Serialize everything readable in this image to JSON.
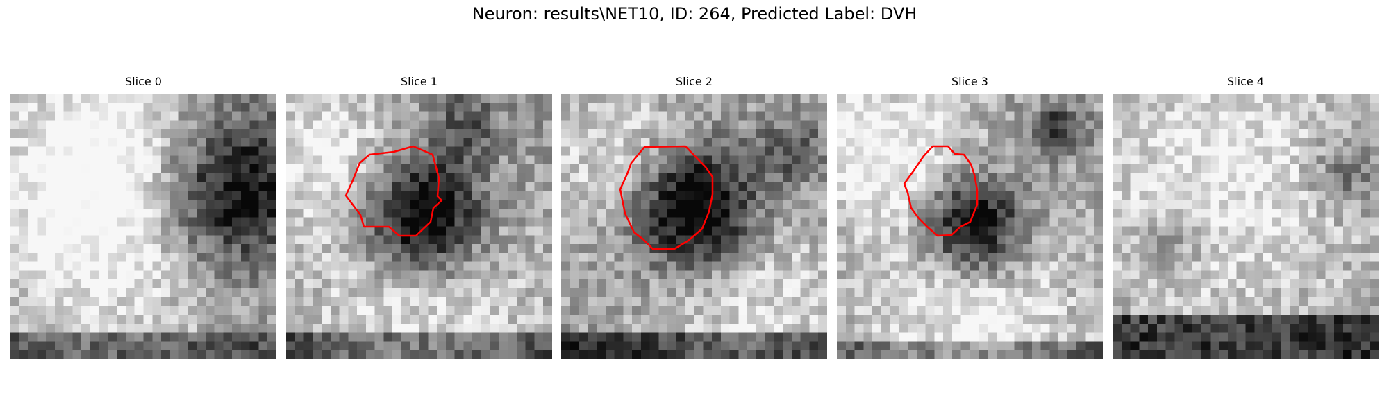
{
  "figure": {
    "title": "Neuron: results\\NET10, ID: 264, Predicted Label: DVH",
    "contour_color": "#ff0000"
  },
  "slices": [
    {
      "title": "Slice 0",
      "has_contour": false,
      "cell_intensity": 0.0
    },
    {
      "title": "Slice 1",
      "has_contour": true,
      "cell_intensity": 0.85
    },
    {
      "title": "Slice 2",
      "has_contour": true,
      "cell_intensity": 0.85
    },
    {
      "title": "Slice 3",
      "has_contour": true,
      "cell_intensity": 0.8
    },
    {
      "title": "Slice 4",
      "has_contour": false,
      "cell_intensity": 0.0
    }
  ]
}
